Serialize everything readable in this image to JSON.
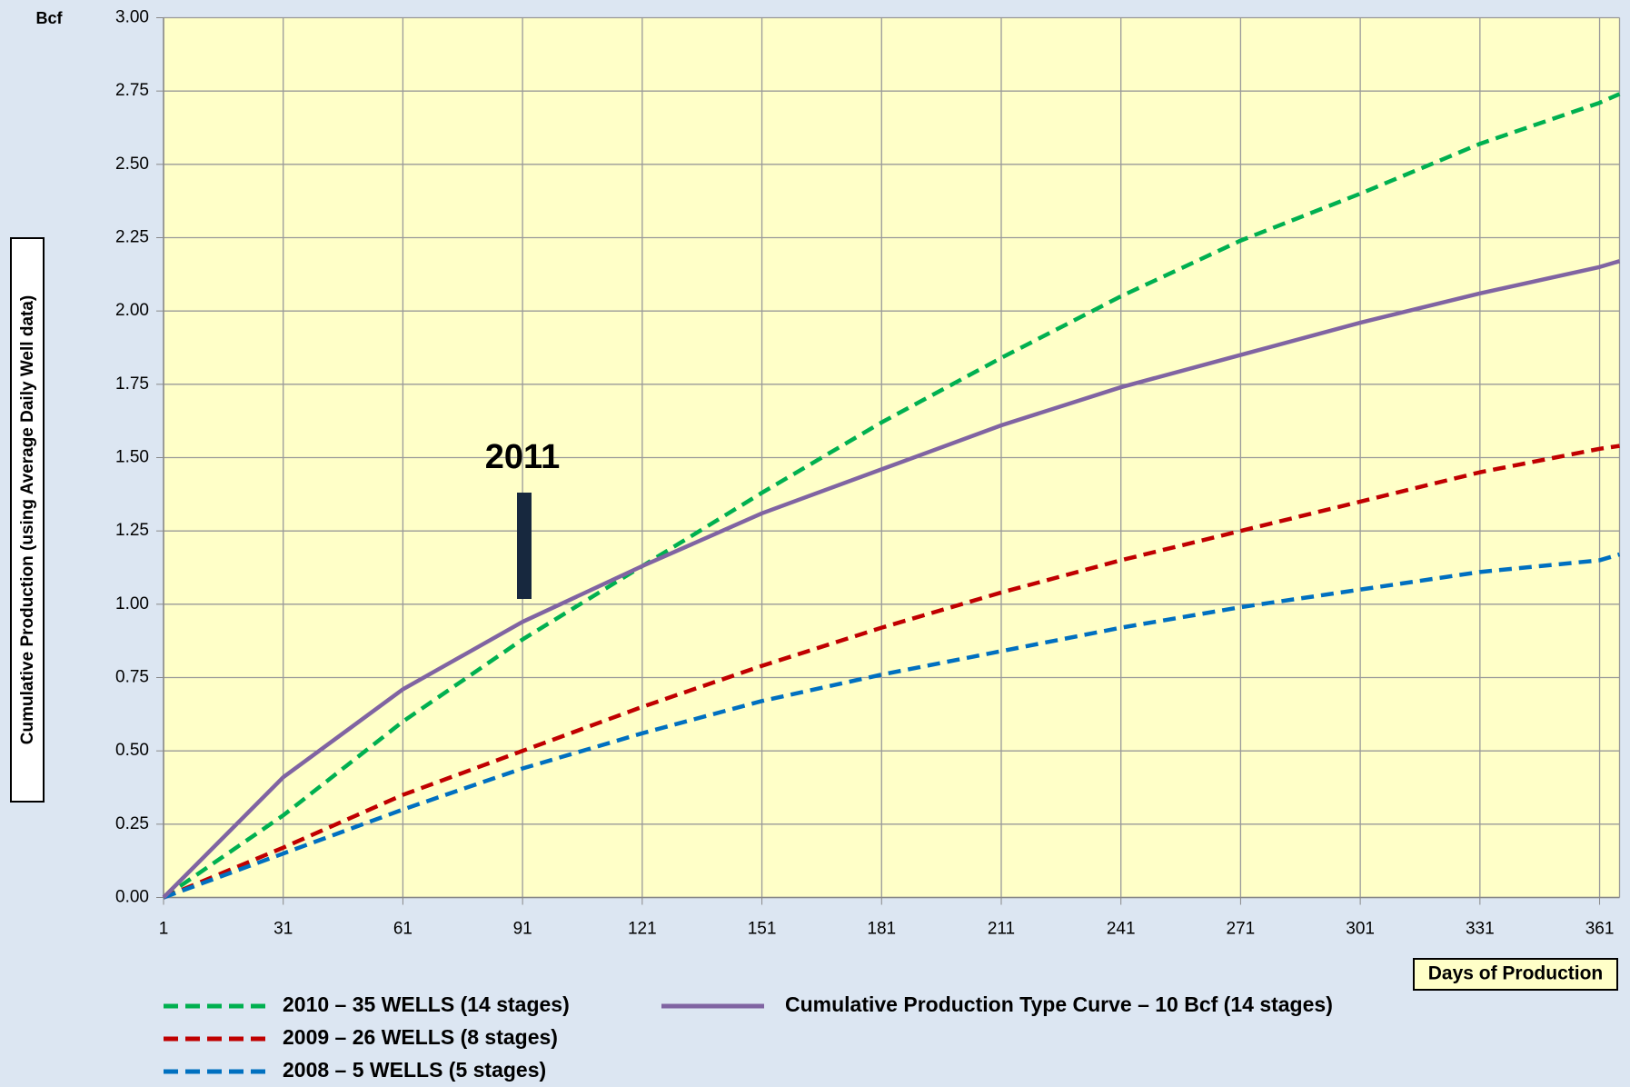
{
  "chart_data": {
    "type": "line",
    "y_unit_label": "Bcf",
    "ylabel": "Cumulative Production (using Average Daily Well data)",
    "xlabel": "Days of Production",
    "annotation": "2011",
    "x": [
      1,
      31,
      61,
      91,
      121,
      151,
      181,
      211,
      241,
      271,
      301,
      331,
      361,
      366
    ],
    "series": [
      {
        "name": "2010 – 35 WELLS (14 stages)",
        "color": "#00b050",
        "dashed": true,
        "values": [
          0,
          0.28,
          0.6,
          0.88,
          1.13,
          1.38,
          1.62,
          1.84,
          2.05,
          2.24,
          2.4,
          2.57,
          2.71,
          2.74
        ]
      },
      {
        "name": "2009 – 26 WELLS (8 stages)",
        "color": "#c00000",
        "dashed": true,
        "values": [
          0,
          0.17,
          0.35,
          0.5,
          0.65,
          0.79,
          0.92,
          1.04,
          1.15,
          1.25,
          1.35,
          1.45,
          1.53,
          1.54
        ]
      },
      {
        "name": "2008 – 5 WELLS (5 stages)",
        "color": "#0070c0",
        "dashed": true,
        "values": [
          0,
          0.15,
          0.3,
          0.44,
          0.56,
          0.67,
          0.76,
          0.84,
          0.92,
          0.99,
          1.05,
          1.11,
          1.15,
          1.17
        ]
      },
      {
        "name": "Cumulative Production Type Curve – 10 Bcf (14 stages)",
        "color": "#8064a2",
        "dashed": false,
        "values": [
          0,
          0.41,
          0.71,
          0.94,
          1.13,
          1.31,
          1.46,
          1.61,
          1.74,
          1.85,
          1.96,
          2.06,
          2.15,
          2.17
        ]
      }
    ],
    "xlim": [
      1,
      366
    ],
    "xticks": [
      1,
      31,
      61,
      91,
      121,
      151,
      181,
      211,
      241,
      271,
      301,
      331,
      361
    ],
    "ylim": [
      0,
      3
    ],
    "yticks": [
      {
        "value": 0,
        "label": "0.00"
      },
      {
        "value": 0.25,
        "label": "0.25"
      },
      {
        "value": 0.5,
        "label": "0.50"
      },
      {
        "value": 0.75,
        "label": "0.75"
      },
      {
        "value": 1,
        "label": "1.00"
      },
      {
        "value": 1.25,
        "label": "1.25"
      },
      {
        "value": 1.5,
        "label": "1.50"
      },
      {
        "value": 1.75,
        "label": "1.75"
      },
      {
        "value": 2,
        "label": "2.00"
      },
      {
        "value": 2.25,
        "label": "2.25"
      },
      {
        "value": 2.5,
        "label": "2.50"
      },
      {
        "value": 2.75,
        "label": "2.75"
      },
      {
        "value": 3,
        "label": "3.00"
      }
    ],
    "grid": true
  }
}
